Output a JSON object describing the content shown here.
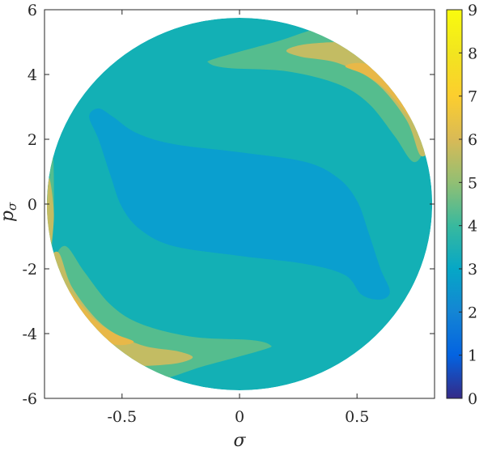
{
  "chart_data": {
    "type": "heatmap",
    "subtype": "filled-contour",
    "xlabel": "σ",
    "ylabel": "p",
    "ylabel_subscript": "σ",
    "xlim": [
      -0.83,
      0.83
    ],
    "ylim": [
      -6,
      6
    ],
    "xticks": [
      {
        "value": -0.5,
        "label": "-0.5"
      },
      {
        "value": 0,
        "label": "0"
      },
      {
        "value": 0.5,
        "label": "0.5"
      }
    ],
    "yticks": [
      {
        "value": -6,
        "label": "-6"
      },
      {
        "value": -4,
        "label": "-4"
      },
      {
        "value": -2,
        "label": "-2"
      },
      {
        "value": 0,
        "label": "0"
      },
      {
        "value": 2,
        "label": "2"
      },
      {
        "value": 4,
        "label": "4"
      },
      {
        "value": 6,
        "label": "6"
      }
    ],
    "domain": {
      "shape": "ellipse",
      "center": [
        0,
        0
      ],
      "sigma_radius": 0.82,
      "p_radius": 5.75
    },
    "colormap": "parula",
    "colorbar": {
      "range": [
        0,
        9
      ],
      "ticks": [
        {
          "value": 0,
          "label": "0"
        },
        {
          "value": 1,
          "label": "1"
        },
        {
          "value": 2,
          "label": "2"
        },
        {
          "value": 3,
          "label": "3"
        },
        {
          "value": 4,
          "label": "4"
        },
        {
          "value": 5,
          "label": "5"
        },
        {
          "value": 6,
          "label": "6"
        },
        {
          "value": 7,
          "label": "7"
        },
        {
          "value": 8,
          "label": "8"
        },
        {
          "value": 9,
          "label": "9"
        }
      ],
      "stops": [
        {
          "value": 0,
          "color": "#352a87"
        },
        {
          "value": 1,
          "color": "#0363e1"
        },
        {
          "value": 2,
          "color": "#1485d4"
        },
        {
          "value": 3,
          "color": "#06a7c6"
        },
        {
          "value": 4,
          "color": "#38b99e"
        },
        {
          "value": 5,
          "color": "#92bf73"
        },
        {
          "value": 6,
          "color": "#d9ba56"
        },
        {
          "value": 7,
          "color": "#fcce2e"
        },
        {
          "value": 8,
          "color": "#f2e51f"
        },
        {
          "value": 9,
          "color": "#f9fb0e"
        }
      ]
    },
    "levels": [
      {
        "value": 3,
        "color": "#0a9fcf",
        "regions": [
          [
            [
              -0.6,
              2.95
            ],
            [
              -0.54,
              2.7
            ],
            [
              -0.44,
              2.2
            ],
            [
              -0.28,
              1.85
            ],
            [
              0,
              1.6
            ],
            [
              0.28,
              1.3
            ],
            [
              0.42,
              0.8
            ],
            [
              0.5,
              0.1
            ],
            [
              0.55,
              -0.9
            ],
            [
              0.6,
              -2
            ],
            [
              0.64,
              -2.7
            ],
            [
              0.6,
              -2.95
            ],
            [
              0.52,
              -2.8
            ],
            [
              0.45,
              -2.2
            ],
            [
              0.28,
              -1.85
            ],
            [
              0,
              -1.6
            ],
            [
              -0.28,
              -1.3
            ],
            [
              -0.42,
              -0.8
            ],
            [
              -0.5,
              -0.1
            ],
            [
              -0.55,
              0.9
            ],
            [
              -0.6,
              2
            ],
            [
              -0.64,
              2.7
            ]
          ]
        ]
      },
      {
        "value": 3.5,
        "color": "#13b0b5",
        "regions": [
          [
            [
              -0.82,
              0
            ],
            [
              -0.7,
              -2.9
            ],
            [
              -0.45,
              -4.75
            ],
            [
              0,
              -5.75
            ],
            [
              0.45,
              -4.75
            ],
            [
              0.7,
              -2.9
            ],
            [
              0.82,
              0
            ],
            [
              0.7,
              2.9
            ],
            [
              0.45,
              4.75
            ],
            [
              0,
              5.75
            ],
            [
              -0.45,
              4.75
            ],
            [
              -0.7,
              2.9
            ]
          ]
        ]
      },
      {
        "value": 5,
        "color": "#55bd8e",
        "regions": [
          [
            [
              -0.1,
              4.5
            ],
            [
              0.15,
              5
            ],
            [
              0.37,
              5.45
            ],
            [
              0.55,
              5.1
            ],
            [
              0.7,
              4.3
            ],
            [
              0.8,
              2.9
            ],
            [
              0.79,
              1.8
            ],
            [
              0.74,
              1.3
            ],
            [
              0.66,
              2.1
            ],
            [
              0.55,
              3.1
            ],
            [
              0.42,
              3.7
            ],
            [
              0.2,
              4.1
            ],
            [
              -0.05,
              4.2
            ],
            [
              -0.13,
              4.35
            ]
          ],
          [
            [
              0.1,
              -4.5
            ],
            [
              -0.15,
              -5
            ],
            [
              -0.37,
              -5.45
            ],
            [
              -0.55,
              -5.1
            ],
            [
              -0.7,
              -4.3
            ],
            [
              -0.8,
              -2.9
            ],
            [
              -0.79,
              -1.8
            ],
            [
              -0.74,
              -1.3
            ],
            [
              -0.66,
              -2.1
            ],
            [
              -0.55,
              -3.1
            ],
            [
              -0.42,
              -3.7
            ],
            [
              -0.2,
              -4.1
            ],
            [
              0.05,
              -4.2
            ],
            [
              0.13,
              -4.35
            ]
          ],
          [
            [
              -0.795,
              1.6
            ],
            [
              -0.815,
              0
            ],
            [
              -0.8,
              -1.4
            ],
            [
              -0.79,
              0
            ]
          ]
        ]
      },
      {
        "value": 6.5,
        "color": "#c3bc63",
        "regions": [
          [
            [
              0.2,
              4.75
            ],
            [
              0.3,
              4.95
            ],
            [
              0.5,
              4.95
            ],
            [
              0.66,
              4.4
            ],
            [
              0.77,
              3.2
            ],
            [
              0.81,
              1.9
            ],
            [
              0.77,
              1.5
            ],
            [
              0.71,
              2.6
            ],
            [
              0.58,
              3.75
            ],
            [
              0.42,
              4.35
            ],
            [
              0.26,
              4.55
            ]
          ],
          [
            [
              -0.2,
              -4.75
            ],
            [
              -0.3,
              -4.95
            ],
            [
              -0.5,
              -4.95
            ],
            [
              -0.66,
              -4.4
            ],
            [
              -0.77,
              -3.2
            ],
            [
              -0.81,
              -1.9
            ],
            [
              -0.77,
              -1.5
            ],
            [
              -0.71,
              -2.6
            ],
            [
              -0.58,
              -3.75
            ],
            [
              -0.42,
              -4.35
            ],
            [
              -0.26,
              -4.55
            ]
          ],
          [
            [
              -0.81,
              0.8
            ],
            [
              -0.82,
              -0.3
            ],
            [
              -0.805,
              -1.3
            ],
            [
              -0.79,
              -0.3
            ]
          ]
        ]
      },
      {
        "value": 7.5,
        "color": "#e8b848",
        "regions": [
          [
            [
              0.45,
              4.25
            ],
            [
              0.52,
              4.35
            ],
            [
              0.64,
              4.1
            ],
            [
              0.73,
              3.4
            ],
            [
              0.8,
              2.3
            ],
            [
              0.79,
              1.95
            ],
            [
              0.72,
              2.7
            ],
            [
              0.62,
              3.55
            ],
            [
              0.53,
              4.0
            ]
          ],
          [
            [
              -0.45,
              -4.25
            ],
            [
              -0.52,
              -4.35
            ],
            [
              -0.64,
              -4.1
            ],
            [
              -0.73,
              -3.4
            ],
            [
              -0.8,
              -2.3
            ],
            [
              -0.79,
              -1.95
            ],
            [
              -0.72,
              -2.7
            ],
            [
              -0.62,
              -3.55
            ],
            [
              -0.53,
              -4.0
            ]
          ]
        ]
      },
      {
        "value": 8.3,
        "color": "#f6cb3a",
        "regions": [
          [
            [
              0.66,
              3.55
            ],
            [
              0.74,
              3.15
            ],
            [
              0.8,
              2.2
            ],
            [
              0.74,
              2.75
            ],
            [
              0.69,
              3.25
            ]
          ],
          [
            [
              -0.66,
              -3.55
            ],
            [
              -0.74,
              -3.15
            ],
            [
              -0.8,
              -2.2
            ],
            [
              -0.74,
              -2.75
            ],
            [
              -0.69,
              -3.25
            ]
          ]
        ]
      }
    ]
  }
}
